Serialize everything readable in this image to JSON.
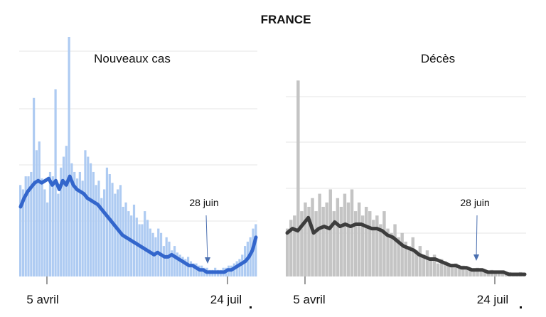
{
  "chart_data": [
    {
      "type": "bar",
      "panel": "left",
      "figure_title": "FRANCE",
      "subtitle": "Nouveaux cas",
      "x_tick_labels": [
        "5 avril",
        "24 juil"
      ],
      "annotation": "28 juin",
      "colors": {
        "bars": "#aecbf2",
        "line": "#3366cc",
        "grid": "#e6e6e6"
      },
      "grid": true,
      "bar_values": [
        42,
        40,
        46,
        46,
        48,
        82,
        58,
        62,
        45,
        40,
        34,
        48,
        46,
        86,
        38,
        50,
        55,
        60,
        110,
        52,
        48,
        45,
        48,
        44,
        58,
        55,
        52,
        48,
        42,
        44,
        36,
        40,
        50,
        47,
        43,
        38,
        40,
        42,
        32,
        34,
        30,
        28,
        33,
        27,
        24,
        24,
        30,
        26,
        22,
        20,
        18,
        22,
        20,
        14,
        18,
        16,
        12,
        14,
        11,
        10,
        9,
        8,
        9,
        7,
        6,
        6,
        5,
        5,
        4,
        4,
        3,
        3,
        4,
        3,
        3,
        4,
        4,
        5,
        5,
        6,
        7,
        8,
        10,
        14,
        16,
        18,
        22,
        24
      ],
      "trend_values": [
        32,
        36,
        39,
        41,
        43,
        44,
        43,
        44,
        45,
        42,
        44,
        40,
        44,
        42,
        46,
        42,
        40,
        39,
        38,
        36,
        35,
        34,
        33,
        31,
        29,
        27,
        25,
        23,
        21,
        19,
        18,
        17,
        16,
        15,
        14,
        13,
        12,
        11,
        10,
        11,
        10,
        9,
        9,
        10,
        9,
        8,
        7,
        6,
        5,
        5,
        4,
        3,
        3,
        2,
        2,
        2,
        2,
        2,
        2,
        3,
        3,
        4,
        5,
        6,
        7,
        9,
        12,
        18
      ],
      "ylim": [
        0,
        110
      ]
    },
    {
      "type": "bar",
      "panel": "right",
      "subtitle": "Décès",
      "x_tick_labels": [
        "5 avril",
        "24 juil"
      ],
      "annotation": "28 juin",
      "colors": {
        "bars": "#c4c4c4",
        "line": "#3d3d3d",
        "grid": "#e6e6e6"
      },
      "grid": true,
      "bar_values": [
        22,
        26,
        28,
        90,
        30,
        34,
        32,
        36,
        30,
        38,
        32,
        34,
        40,
        30,
        36,
        32,
        38,
        34,
        40,
        30,
        34,
        28,
        32,
        30,
        26,
        28,
        24,
        30,
        22,
        20,
        24,
        18,
        20,
        16,
        14,
        18,
        12,
        14,
        10,
        12,
        8,
        10,
        6,
        8,
        7,
        6,
        5,
        6,
        4,
        5,
        4,
        4,
        3,
        4,
        3,
        3,
        2,
        3,
        2,
        2,
        2,
        1,
        2,
        1,
        1,
        2,
        1
      ],
      "trend_values": [
        20,
        22,
        21,
        24,
        27,
        20,
        22,
        23,
        22,
        25,
        23,
        24,
        23,
        24,
        24,
        23,
        22,
        22,
        21,
        19,
        18,
        16,
        14,
        13,
        12,
        10,
        9,
        8,
        8,
        7,
        6,
        5,
        5,
        4,
        4,
        3,
        3,
        3,
        2,
        2,
        2,
        2,
        1,
        1,
        1,
        1
      ],
      "ylim": [
        0,
        110
      ]
    }
  ]
}
